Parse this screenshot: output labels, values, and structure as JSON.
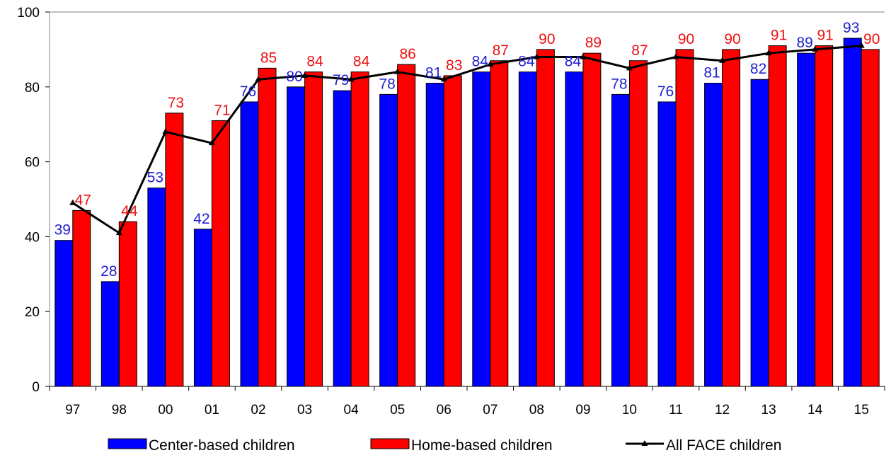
{
  "chart_data": {
    "type": "bar",
    "categories": [
      "97",
      "98",
      "00",
      "01",
      "02",
      "03",
      "04",
      "05",
      "06",
      "07",
      "08",
      "09",
      "10",
      "11",
      "12",
      "13",
      "14",
      "15"
    ],
    "series": [
      {
        "name": "Center-based children",
        "kind": "bar",
        "color": "#0000FF",
        "values": [
          39,
          28,
          53,
          42,
          76,
          80,
          79,
          78,
          81,
          84,
          84,
          84,
          78,
          76,
          81,
          82,
          89,
          93
        ]
      },
      {
        "name": "Home-based children",
        "kind": "bar",
        "color": "#FF0000",
        "values": [
          47,
          44,
          73,
          71,
          85,
          84,
          84,
          86,
          83,
          87,
          90,
          89,
          87,
          90,
          90,
          91,
          91,
          90
        ]
      },
      {
        "name": "All FACE children",
        "kind": "line",
        "color": "#000000",
        "values": [
          49,
          41,
          68,
          65,
          82,
          83,
          82,
          84,
          82,
          86,
          88,
          88,
          85,
          88,
          87,
          89,
          90,
          91
        ]
      }
    ],
    "ylim": [
      0,
      100
    ],
    "yticks": [
      0,
      20,
      40,
      60,
      80,
      100
    ],
    "title": "",
    "xlabel": "",
    "ylabel": "",
    "legend_position": "bottom",
    "grid": false,
    "label_colors": {
      "center": "#2020D0",
      "home": "#EE1010"
    }
  }
}
